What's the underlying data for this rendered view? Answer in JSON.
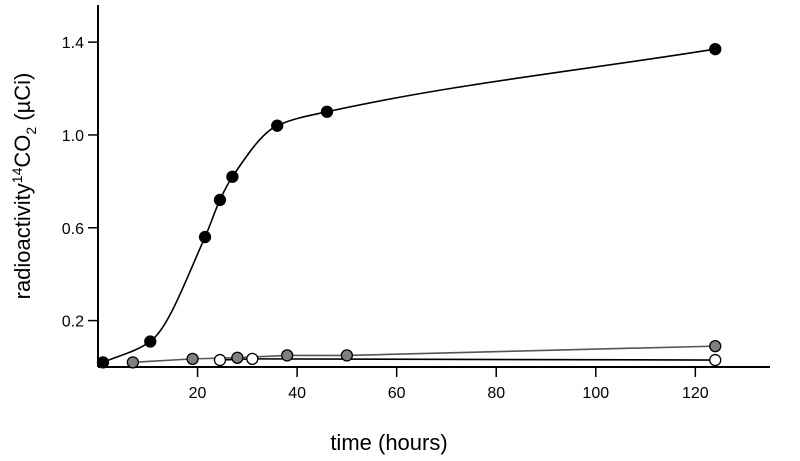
{
  "chart_data": {
    "type": "scatter",
    "xlabel": "time (hours)",
    "ylabel": {
      "prefix": "radioactivity",
      "superscript": "14",
      "main": "CO",
      "subscript": "2",
      "suffix": " (µCi)"
    },
    "xlim": [
      0,
      135
    ],
    "ylim": [
      0.0,
      1.56
    ],
    "x_ticks": [
      20,
      40,
      60,
      80,
      100,
      120
    ],
    "y_ticks": [
      0.2,
      0.6,
      1.0,
      1.4
    ],
    "y_tick_labels": [
      "0.2",
      "0.6",
      "1.0",
      "1.4"
    ],
    "grid": false,
    "legend": "none",
    "series": [
      {
        "marker_fill": "#000000",
        "line_color": "#000000",
        "smooth": true,
        "points": [
          {
            "x": 1,
            "y": 0.02
          },
          {
            "x": 10.5,
            "y": 0.11
          },
          {
            "x": 21.5,
            "y": 0.56
          },
          {
            "x": 24.5,
            "y": 0.72
          },
          {
            "x": 27,
            "y": 0.82
          },
          {
            "x": 36,
            "y": 1.04
          },
          {
            "x": 46,
            "y": 1.1
          },
          {
            "x": 124,
            "y": 1.37
          }
        ]
      },
      {
        "marker_fill": "#808080",
        "line_color": "#555555",
        "smooth": false,
        "points": [
          {
            "x": 7,
            "y": 0.02
          },
          {
            "x": 19,
            "y": 0.035
          },
          {
            "x": 28,
            "y": 0.04
          },
          {
            "x": 38,
            "y": 0.05
          },
          {
            "x": 50,
            "y": 0.05
          },
          {
            "x": 124,
            "y": 0.09
          }
        ]
      },
      {
        "marker_fill": "#ffffff",
        "line_color": "#000000",
        "smooth": false,
        "points": [
          {
            "x": 24.5,
            "y": 0.03
          },
          {
            "x": 31,
            "y": 0.035
          },
          {
            "x": 124,
            "y": 0.03
          }
        ]
      }
    ]
  }
}
